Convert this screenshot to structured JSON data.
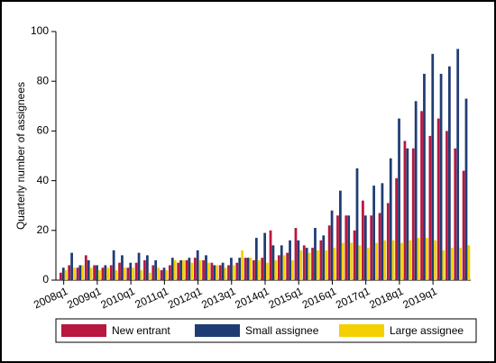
{
  "chart_data": {
    "type": "bar",
    "y_label": "Quarterly number of assignees",
    "categories": [
      "2008q1",
      null,
      null,
      null,
      "2009q1",
      null,
      null,
      null,
      "2010q1",
      null,
      null,
      null,
      "2011q1",
      null,
      null,
      null,
      "2012q1",
      null,
      null,
      null,
      "2013q1",
      null,
      null,
      null,
      "2014q1",
      null,
      null,
      null,
      "2015q1",
      null,
      null,
      null,
      "2016q1",
      null,
      null,
      null,
      "2017q1",
      null,
      null,
      null,
      "2018q1",
      null,
      null,
      null,
      "2019q1",
      null,
      null,
      null,
      null
    ],
    "series": [
      {
        "name": "New entrant",
        "color": "#b8173f",
        "values": [
          3,
          6,
          5,
          10,
          6,
          5,
          6,
          7,
          5,
          7,
          8,
          6,
          4,
          6,
          7,
          8,
          9,
          8,
          7,
          6,
          6,
          7,
          9,
          8,
          9,
          20,
          10,
          11,
          21,
          14,
          13,
          16,
          22,
          26,
          26,
          20,
          32,
          26,
          27,
          31,
          41,
          56,
          53,
          68,
          58,
          65,
          60,
          53,
          44
        ]
      },
      {
        "name": "Small assignee",
        "color": "#1f3d73",
        "values": [
          5,
          11,
          6,
          8,
          6,
          6,
          12,
          10,
          7,
          11,
          10,
          8,
          5,
          9,
          8,
          9,
          12,
          10,
          6,
          7,
          9,
          9,
          9,
          17,
          19,
          14,
          14,
          16,
          16,
          13,
          21,
          18,
          28,
          36,
          26,
          45,
          26,
          38,
          39,
          49,
          65,
          53,
          72,
          83,
          91,
          83,
          86,
          93,
          73
        ]
      },
      {
        "name": "Large assignee",
        "color": "#f4d000",
        "values": [
          4,
          5,
          6,
          5,
          4,
          5,
          4,
          5,
          5,
          4,
          3,
          5,
          4,
          8,
          8,
          7,
          8,
          7,
          6,
          5,
          6,
          12,
          9,
          8,
          7,
          8,
          10,
          8,
          12,
          11,
          12,
          12,
          13,
          15,
          15,
          14,
          13,
          15,
          16,
          16,
          15,
          16,
          17,
          17,
          16,
          12,
          13,
          13,
          14
        ]
      }
    ],
    "ylim": [
      0,
      100
    ],
    "yticks": [
      0,
      20,
      40,
      60,
      80,
      100
    ],
    "legend": "bottom"
  }
}
